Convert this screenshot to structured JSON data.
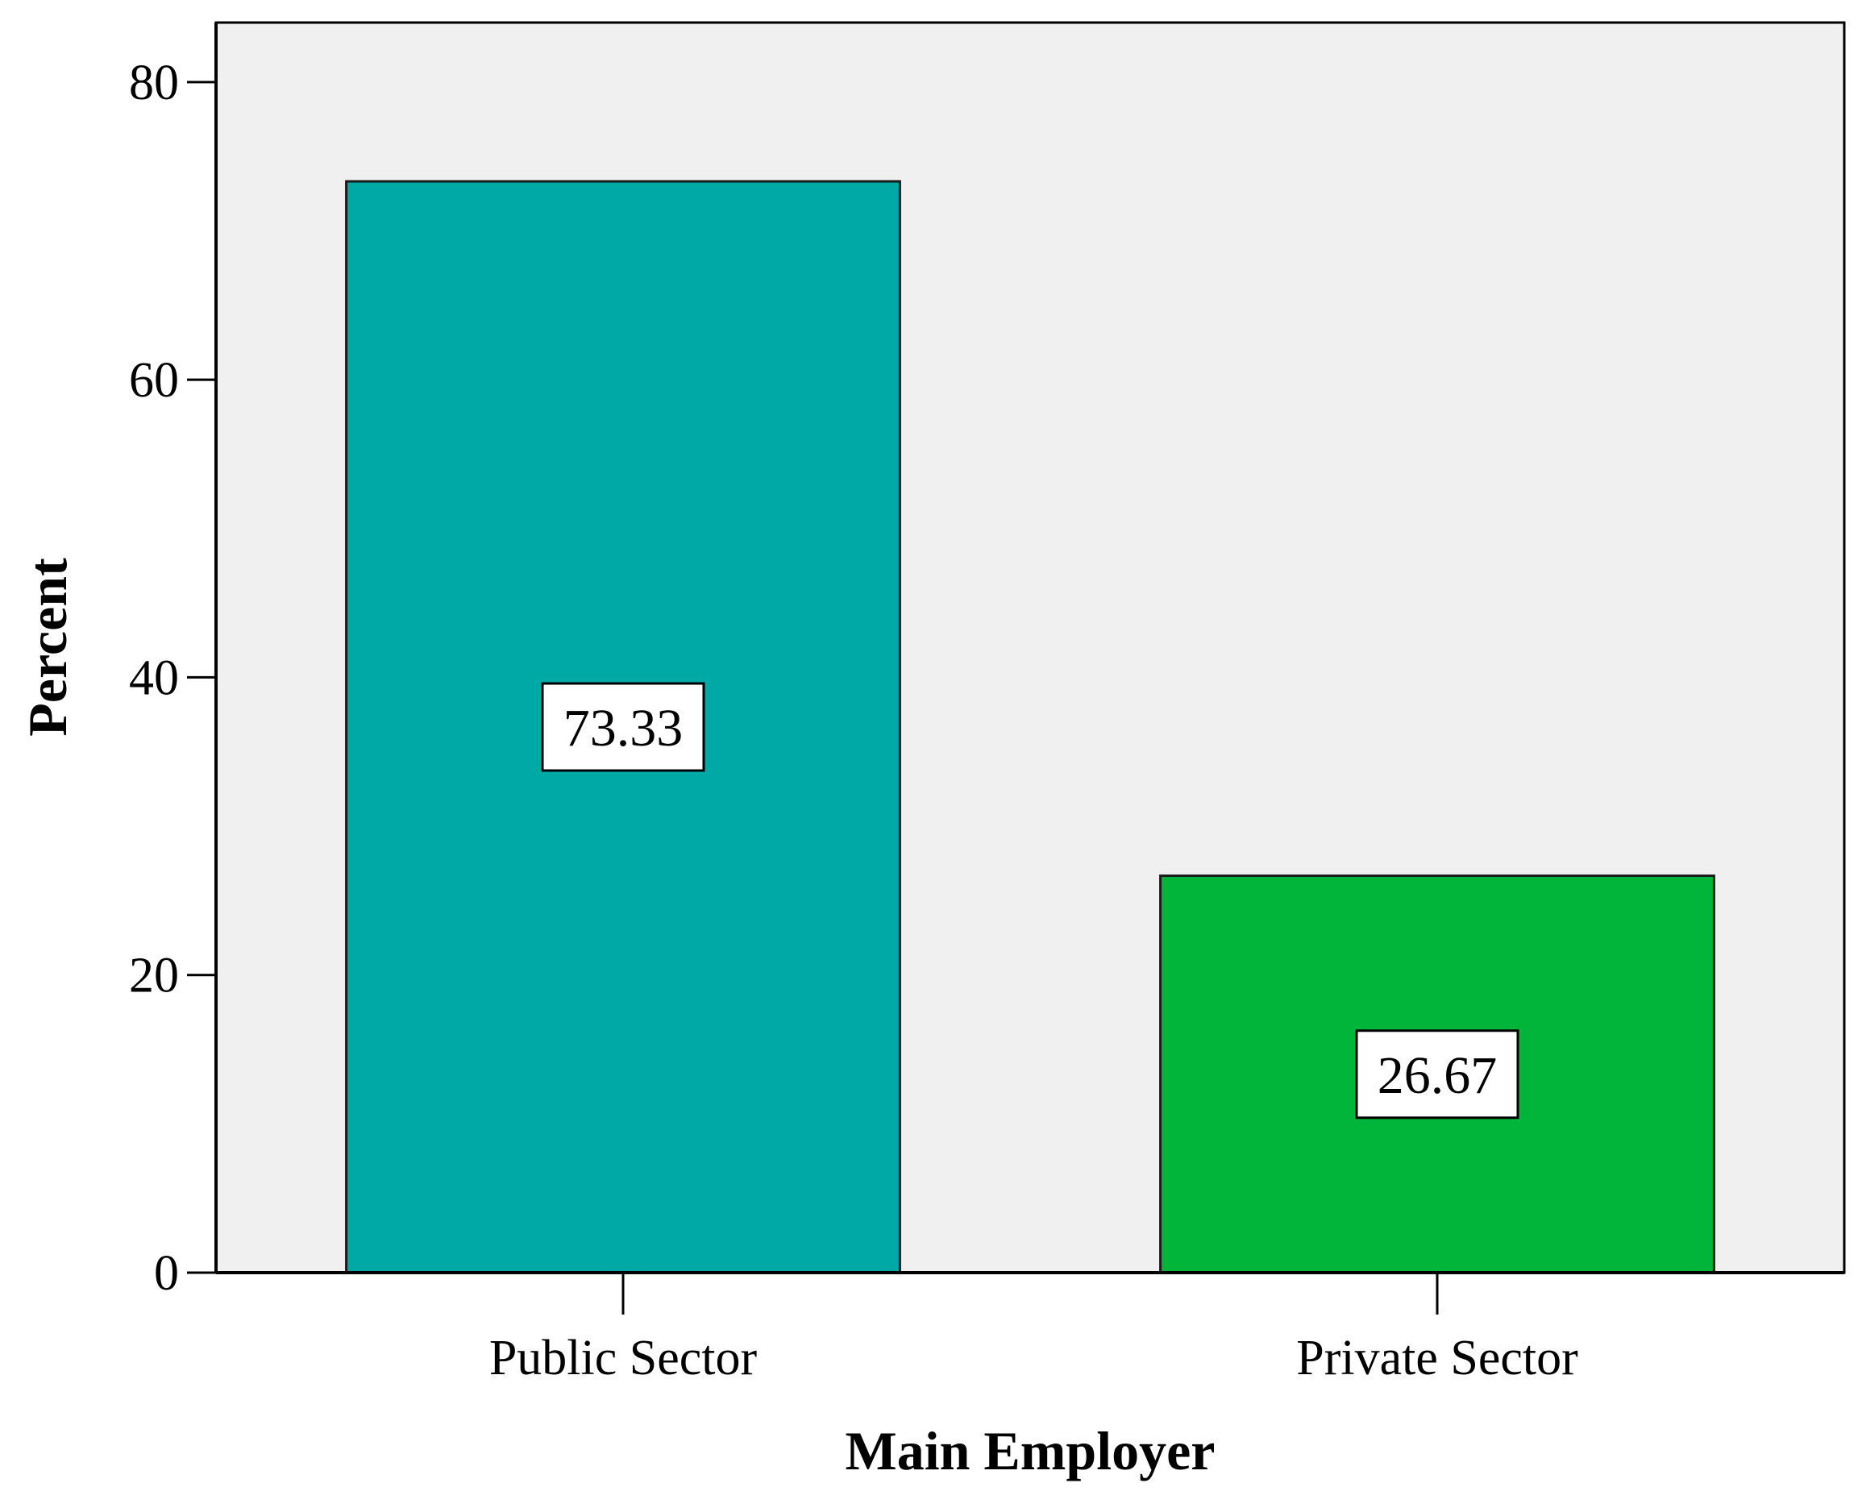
{
  "chart_data": {
    "type": "bar",
    "title": "",
    "xlabel": "Main Employer",
    "ylabel": "Percent",
    "categories": [
      "Public Sector",
      "Private Sector"
    ],
    "values": [
      73.33,
      26.67
    ],
    "data_labels": [
      "73.33",
      "26.67"
    ],
    "bar_colors": [
      "#00A9A5",
      "#00B53A"
    ],
    "plot_background": "#F0F0F0",
    "ylim": [
      0,
      84
    ],
    "yticks": [
      0,
      20,
      40,
      60,
      80
    ],
    "ytick_labels": [
      "0",
      "20",
      "40",
      "60",
      "80"
    ],
    "grid": false,
    "legend": "none"
  }
}
